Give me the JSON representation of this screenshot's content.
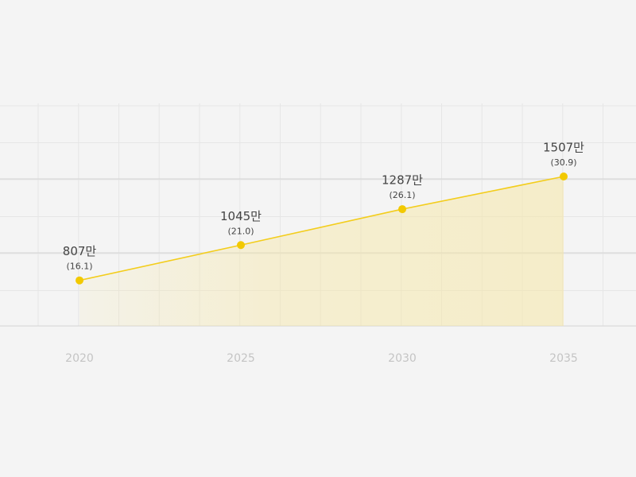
{
  "chart_data": {
    "type": "line",
    "categories": [
      "2020",
      "2025",
      "2030",
      "2035"
    ],
    "series": [
      {
        "color": "#f3cd1c",
        "values": [
          807,
          1045,
          1287,
          1507
        ],
        "value_labels": [
          "807만",
          "1045만",
          "1287만",
          "1507만"
        ]
      }
    ],
    "secondary": {
      "values": [
        16.1,
        21.0,
        26.1,
        30.9
      ],
      "value_labels": [
        "(16.1)",
        "(21.0)",
        "(26.1)",
        "(30.9)"
      ]
    },
    "ylim": [
      500,
      2000
    ],
    "area": true
  }
}
